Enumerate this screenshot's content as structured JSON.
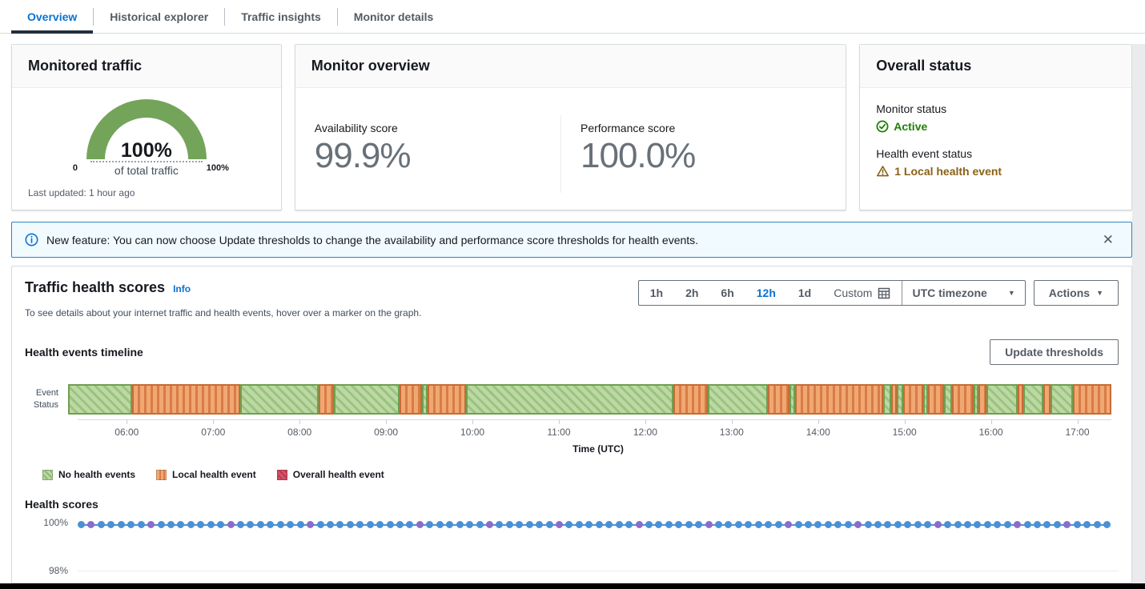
{
  "tabs": {
    "items": [
      {
        "label": "Overview",
        "active": true
      },
      {
        "label": "Historical explorer",
        "active": false
      },
      {
        "label": "Traffic insights",
        "active": false
      },
      {
        "label": "Monitor details",
        "active": false
      }
    ]
  },
  "cards": {
    "monitored_traffic": {
      "title": "Monitored traffic",
      "gauge": {
        "value_label": "100%",
        "sub_label": "of total traffic",
        "min_label": "0",
        "max_label": "100%"
      },
      "footer": "Last updated: 1 hour ago"
    },
    "monitor_overview": {
      "title": "Monitor overview",
      "availability": {
        "label": "Availability score",
        "value": "99.9%"
      },
      "performance": {
        "label": "Performance score",
        "value": "100.0%"
      }
    },
    "overall_status": {
      "title": "Overall status",
      "monitor_status": {
        "label": "Monitor status",
        "value": "Active"
      },
      "health_event_status": {
        "label": "Health event status",
        "value": "1 Local health event"
      }
    }
  },
  "banner": {
    "text": "New feature: You can now choose Update thresholds to change the availability and performance score thresholds for health events.",
    "close_icon": "✕"
  },
  "panel": {
    "title": "Traffic health scores",
    "info_label": "Info",
    "description": "To see details about your internet traffic and health events, hover over a marker on the graph.",
    "time_ranges": [
      {
        "label": "1h",
        "selected": false
      },
      {
        "label": "2h",
        "selected": false
      },
      {
        "label": "6h",
        "selected": false
      },
      {
        "label": "12h",
        "selected": true
      },
      {
        "label": "1d",
        "selected": false
      },
      {
        "label": "Custom",
        "selected": false,
        "icon": "calendar-icon"
      }
    ],
    "timezone_label": "UTC timezone",
    "actions_label": "Actions",
    "timeline_section_title": "Health events timeline",
    "update_thresholds_label": "Update thresholds",
    "scores_section_title": "Health scores"
  },
  "colors": {
    "accent_blue": "#0972d3",
    "status_green": "#1d8102",
    "warning_amber": "#8a6116",
    "gauge_green": "#74a45a",
    "timeline_green_fill": "#bdd8a7",
    "timeline_green_border": "#6f9f50",
    "timeline_orange_fill": "#f0a873",
    "timeline_orange_border": "#c76b35",
    "legend_red": "#c94158",
    "score_dot_blue": "#4b90d4",
    "score_dot_purple": "#8b6cc9"
  },
  "chart_data": [
    {
      "name": "health_events_timeline",
      "type": "timeline",
      "title": "Health events timeline",
      "row_label": "Event\nStatus",
      "xlabel": "Time (UTC)",
      "x_ticks": [
        "06:00",
        "07:00",
        "08:00",
        "09:00",
        "10:00",
        "11:00",
        "12:00",
        "13:00",
        "14:00",
        "15:00",
        "16:00",
        "17:00"
      ],
      "x_range_approx": [
        "05:26",
        "17:25"
      ],
      "tick_start_pct": 4.75,
      "tick_step_pct": 8.36,
      "legend": [
        "No health events",
        "Local health event",
        "Overall health event"
      ],
      "segments": [
        {
          "status": "no-health-events",
          "width_pct": 6.13,
          "from": "05:26",
          "to": "06:10"
        },
        {
          "status": "local-health-event",
          "width_pct": 10.35,
          "from": "06:10",
          "to": "07:24"
        },
        {
          "status": "no-health-events",
          "width_pct": 7.52,
          "from": "07:24",
          "to": "08:18"
        },
        {
          "status": "local-health-event",
          "width_pct": 1.46,
          "from": "08:18",
          "to": "08:29"
        },
        {
          "status": "no-health-events",
          "width_pct": 6.29,
          "from": "08:29",
          "to": "09:14"
        },
        {
          "status": "local-health-event",
          "width_pct": 2.15,
          "from": "09:14",
          "to": "09:29"
        },
        {
          "status": "no-health-events",
          "width_pct": 0.54,
          "from": "09:29",
          "to": "09:33"
        },
        {
          "status": "local-health-event",
          "width_pct": 3.68,
          "from": "09:33",
          "to": "10:00"
        },
        {
          "status": "no-health-events",
          "width_pct": 19.94,
          "from": "10:00",
          "to": "12:23"
        },
        {
          "status": "local-health-event",
          "width_pct": 3.3,
          "from": "12:23",
          "to": "12:46"
        },
        {
          "status": "no-health-events",
          "width_pct": 5.75,
          "from": "12:46",
          "to": "13:28"
        },
        {
          "status": "local-health-event",
          "width_pct": 2.07,
          "from": "13:28",
          "to": "13:42"
        },
        {
          "status": "no-health-events",
          "width_pct": 0.54,
          "from": "13:42",
          "to": "13:46"
        },
        {
          "status": "local-health-event",
          "width_pct": 8.44,
          "from": "13:46",
          "to": "14:47"
        },
        {
          "status": "no-health-events",
          "width_pct": 0.77,
          "from": "14:47",
          "to": "14:52"
        },
        {
          "status": "local-health-event",
          "width_pct": 0.54,
          "from": "14:52",
          "to": "14:56"
        },
        {
          "status": "no-health-events",
          "width_pct": 0.61,
          "from": "14:56",
          "to": "15:01"
        },
        {
          "status": "local-health-event",
          "width_pct": 1.92,
          "from": "15:01",
          "to": "15:14"
        },
        {
          "status": "no-health-events",
          "width_pct": 0.46,
          "from": "15:14",
          "to": "15:18"
        },
        {
          "status": "local-health-event",
          "width_pct": 1.53,
          "from": "15:18",
          "to": "15:29"
        },
        {
          "status": "no-health-events",
          "width_pct": 0.77,
          "from": "15:29",
          "to": "15:34"
        },
        {
          "status": "local-health-event",
          "width_pct": 2.07,
          "from": "15:34",
          "to": "15:49"
        },
        {
          "status": "no-health-events",
          "width_pct": 0.46,
          "from": "15:49",
          "to": "15:52"
        },
        {
          "status": "local-health-event",
          "width_pct": 0.77,
          "from": "15:52",
          "to": "15:58"
        },
        {
          "status": "no-health-events",
          "width_pct": 2.99,
          "from": "15:58",
          "to": "16:19"
        },
        {
          "status": "local-health-event",
          "width_pct": 0.54,
          "from": "16:19",
          "to": "16:23"
        },
        {
          "status": "no-health-events",
          "width_pct": 1.92,
          "from": "16:23",
          "to": "16:37"
        },
        {
          "status": "local-health-event",
          "width_pct": 0.69,
          "from": "16:37",
          "to": "16:42"
        },
        {
          "status": "no-health-events",
          "width_pct": 2.15,
          "from": "16:42",
          "to": "16:57"
        },
        {
          "status": "local-health-event",
          "width_pct": 3.68,
          "from": "16:57",
          "to": "17:25"
        }
      ]
    },
    {
      "name": "health_scores",
      "type": "scatter",
      "title": "Health scores",
      "y_ticks": [
        "100%",
        "98%"
      ],
      "ylim": [
        97.7,
        100.2
      ],
      "series": [
        {
          "name": "health-score-markers",
          "y_value": "100%",
          "point_count": 104
        }
      ],
      "purple_point_indices": [
        1,
        7,
        15,
        23,
        34,
        41,
        48,
        56,
        63,
        71,
        78,
        86,
        94,
        99
      ],
      "legend_position": "none",
      "grid": "y-only"
    }
  ]
}
